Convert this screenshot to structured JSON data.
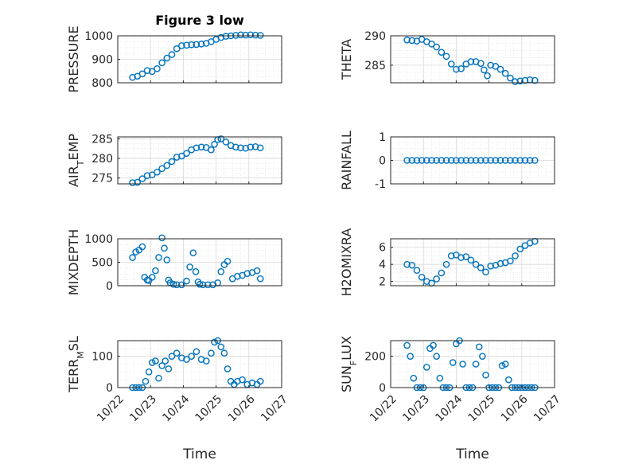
{
  "figure": {
    "title": "Figure 3 low",
    "xlabel": "Time",
    "marker_color": "#0072bd",
    "date_ticks": [
      "10/22",
      "10/23",
      "10/24",
      "10/25",
      "10/26",
      "10/27"
    ]
  },
  "chart_data": [
    {
      "type": "scatter",
      "ylabel": "PRESSURE",
      "ylabel_main": "PRESSURE",
      "ylabel_sub": "",
      "ylabel_tail": "",
      "title": "Figure 3 low",
      "xlim": [
        "10/22",
        "10/27"
      ],
      "ylim": [
        800,
        1000
      ],
      "yticks": [
        800,
        900,
        1000
      ],
      "grid": true,
      "x": [
        0.45,
        0.6,
        0.75,
        0.9,
        1.05,
        1.2,
        1.35,
        1.5,
        1.65,
        1.8,
        1.95,
        2.1,
        2.25,
        2.4,
        2.55,
        2.7,
        2.85,
        3.0,
        3.15,
        3.3,
        3.45,
        3.6,
        3.75,
        3.9,
        4.05,
        4.2,
        4.35
      ],
      "y": [
        823,
        828,
        838,
        852,
        848,
        860,
        885,
        905,
        920,
        945,
        958,
        960,
        962,
        963,
        965,
        968,
        975,
        985,
        993,
        998,
        1000,
        1002,
        1004,
        1003,
        1004,
        1003,
        1002
      ]
    },
    {
      "type": "scatter",
      "ylabel": "THETA",
      "ylabel_main": "THETA",
      "ylabel_sub": "",
      "ylabel_tail": "",
      "xlim": [
        "10/22",
        "10/27"
      ],
      "ylim": [
        282,
        290
      ],
      "yticks": [
        285,
        290
      ],
      "grid": true,
      "x": [
        0.5,
        0.65,
        0.8,
        0.95,
        1.1,
        1.25,
        1.4,
        1.55,
        1.7,
        1.85,
        2.0,
        2.15,
        2.3,
        2.45,
        2.6,
        2.75,
        2.85,
        2.95,
        3.05,
        3.2,
        3.35,
        3.5,
        3.65,
        3.8,
        3.95,
        4.1,
        4.25,
        4.4
      ],
      "y": [
        289.3,
        289.2,
        289.1,
        289.4,
        289.0,
        288.6,
        288.1,
        287.2,
        286.5,
        285.2,
        284.3,
        284.4,
        285.2,
        285.6,
        285.6,
        285.3,
        284.2,
        283.2,
        285.0,
        284.8,
        284.3,
        283.6,
        282.8,
        282.2,
        282.3,
        282.4,
        282.5,
        282.4
      ]
    },
    {
      "type": "scatter",
      "ylabel": "AIR_TEMP",
      "ylabel_main": "AIR",
      "ylabel_sub": "T",
      "ylabel_tail": "EMP",
      "xlim": [
        "10/22",
        "10/27"
      ],
      "ylim": [
        273.5,
        285.5
      ],
      "yticks": [
        275,
        280,
        285
      ],
      "grid": true,
      "x": [
        0.45,
        0.6,
        0.75,
        0.9,
        1.05,
        1.2,
        1.35,
        1.5,
        1.65,
        1.8,
        1.95,
        2.1,
        2.25,
        2.4,
        2.55,
        2.7,
        2.85,
        2.95,
        3.05,
        3.15,
        3.3,
        3.45,
        3.6,
        3.75,
        3.9,
        4.05,
        4.2,
        4.35
      ],
      "y": [
        273.8,
        273.9,
        274.8,
        275.6,
        275.8,
        276.5,
        277.4,
        278.2,
        279.2,
        280.3,
        280.6,
        281.3,
        282.2,
        282.7,
        282.9,
        282.8,
        282.2,
        283.6,
        284.8,
        285.0,
        284.2,
        283.3,
        282.9,
        282.7,
        282.6,
        282.9,
        283.0,
        282.7
      ]
    },
    {
      "type": "scatter",
      "ylabel": "RAINFALL",
      "ylabel_main": "RAINFALL",
      "ylabel_sub": "",
      "ylabel_tail": "",
      "xlim": [
        "10/22",
        "10/27"
      ],
      "ylim": [
        -1,
        1
      ],
      "yticks": [
        -1,
        0,
        1
      ],
      "grid": true,
      "x": [
        0.5,
        0.65,
        0.8,
        0.95,
        1.1,
        1.25,
        1.4,
        1.55,
        1.7,
        1.85,
        2.0,
        2.15,
        2.3,
        2.45,
        2.6,
        2.75,
        2.9,
        3.05,
        3.2,
        3.35,
        3.5,
        3.65,
        3.8,
        3.95,
        4.1,
        4.25,
        4.4
      ],
      "y": [
        0,
        0,
        0,
        0,
        0,
        0,
        0,
        0,
        0,
        0,
        0,
        0,
        0,
        0,
        0,
        0,
        0,
        0,
        0,
        0,
        0,
        0,
        0,
        0,
        0,
        0,
        0
      ]
    },
    {
      "type": "scatter",
      "ylabel": "MIXDEPTH",
      "ylabel_main": "MIXDEPTH",
      "ylabel_sub": "",
      "ylabel_tail": "",
      "xlim": [
        "10/22",
        "10/27"
      ],
      "ylim": [
        0,
        1000
      ],
      "yticks": [
        0,
        500,
        1000
      ],
      "grid": true,
      "x": [
        0.45,
        0.55,
        0.65,
        0.75,
        0.82,
        0.9,
        0.95,
        1.05,
        1.15,
        1.25,
        1.35,
        1.42,
        1.5,
        1.55,
        1.6,
        1.7,
        1.8,
        1.95,
        2.1,
        2.2,
        2.3,
        2.38,
        2.45,
        2.5,
        2.6,
        2.75,
        2.9,
        3.05,
        3.15,
        3.25,
        3.35,
        3.5,
        3.65,
        3.8,
        3.95,
        4.1,
        4.25,
        4.35
      ],
      "y": [
        600,
        720,
        760,
        830,
        180,
        120,
        110,
        180,
        320,
        600,
        1020,
        800,
        550,
        120,
        60,
        30,
        20,
        20,
        100,
        400,
        700,
        300,
        80,
        30,
        20,
        20,
        20,
        60,
        300,
        450,
        520,
        150,
        200,
        220,
        260,
        280,
        320,
        150
      ]
    },
    {
      "type": "scatter",
      "ylabel": "H2OMIXRA",
      "ylabel_main": "H2OMIXRA",
      "ylabel_sub": "",
      "ylabel_tail": "",
      "xlim": [
        "10/22",
        "10/27"
      ],
      "ylim": [
        1.5,
        7
      ],
      "yticks": [
        2,
        4,
        6
      ],
      "grid": true,
      "x": [
        0.5,
        0.65,
        0.8,
        0.95,
        1.1,
        1.25,
        1.4,
        1.55,
        1.7,
        1.85,
        2.0,
        2.15,
        2.3,
        2.45,
        2.6,
        2.75,
        2.9,
        3.05,
        3.2,
        3.35,
        3.5,
        3.65,
        3.8,
        3.95,
        4.1,
        4.25,
        4.4
      ],
      "y": [
        4.0,
        3.9,
        3.3,
        2.5,
        2.0,
        1.8,
        2.3,
        3.0,
        4.0,
        5.0,
        5.1,
        4.8,
        4.9,
        4.5,
        4.0,
        3.6,
        3.1,
        3.8,
        3.9,
        4.1,
        4.2,
        4.4,
        5.0,
        5.8,
        6.2,
        6.5,
        6.7
      ]
    },
    {
      "type": "scatter",
      "ylabel": "TERR_MSL",
      "ylabel_main": "TERR",
      "ylabel_sub": "M",
      "ylabel_tail": "SL",
      "xlim": [
        "10/22",
        "10/27"
      ],
      "ylim": [
        0,
        150
      ],
      "yticks": [
        0,
        100
      ],
      "grid": true,
      "x": [
        0.45,
        0.55,
        0.65,
        0.75,
        0.85,
        0.95,
        1.05,
        1.15,
        1.25,
        1.35,
        1.45,
        1.55,
        1.65,
        1.8,
        1.95,
        2.1,
        2.25,
        2.4,
        2.55,
        2.7,
        2.85,
        2.95,
        3.05,
        3.15,
        3.25,
        3.35,
        3.45,
        3.55,
        3.65,
        3.8,
        3.95,
        4.1,
        4.25,
        4.35
      ],
      "y": [
        0,
        0,
        0,
        0,
        20,
        50,
        80,
        85,
        30,
        70,
        85,
        60,
        100,
        110,
        95,
        90,
        100,
        115,
        90,
        85,
        110,
        145,
        150,
        130,
        110,
        60,
        20,
        10,
        20,
        25,
        10,
        15,
        10,
        20
      ]
    },
    {
      "type": "scatter",
      "ylabel": "SUN_FLUX",
      "ylabel_main": "SUN",
      "ylabel_sub": "F",
      "ylabel_tail": "LUX",
      "xlim": [
        "10/22",
        "10/27"
      ],
      "ylim": [
        0,
        300
      ],
      "yticks": [
        0,
        200
      ],
      "grid": true,
      "x": [
        0.5,
        0.6,
        0.7,
        0.8,
        0.9,
        1.0,
        1.1,
        1.2,
        1.3,
        1.4,
        1.5,
        1.6,
        1.7,
        1.8,
        1.9,
        2.0,
        2.1,
        2.2,
        2.3,
        2.4,
        2.5,
        2.6,
        2.7,
        2.8,
        2.9,
        3.0,
        3.1,
        3.2,
        3.3,
        3.4,
        3.5,
        3.6,
        3.7,
        3.8,
        3.9,
        4.0,
        4.1,
        4.2,
        4.3,
        4.4
      ],
      "y": [
        270,
        200,
        60,
        0,
        0,
        0,
        130,
        250,
        270,
        200,
        60,
        0,
        0,
        0,
        160,
        280,
        300,
        150,
        0,
        0,
        0,
        150,
        260,
        200,
        80,
        0,
        0,
        0,
        0,
        140,
        150,
        50,
        0,
        0,
        0,
        0,
        0,
        0,
        0,
        0
      ]
    }
  ]
}
